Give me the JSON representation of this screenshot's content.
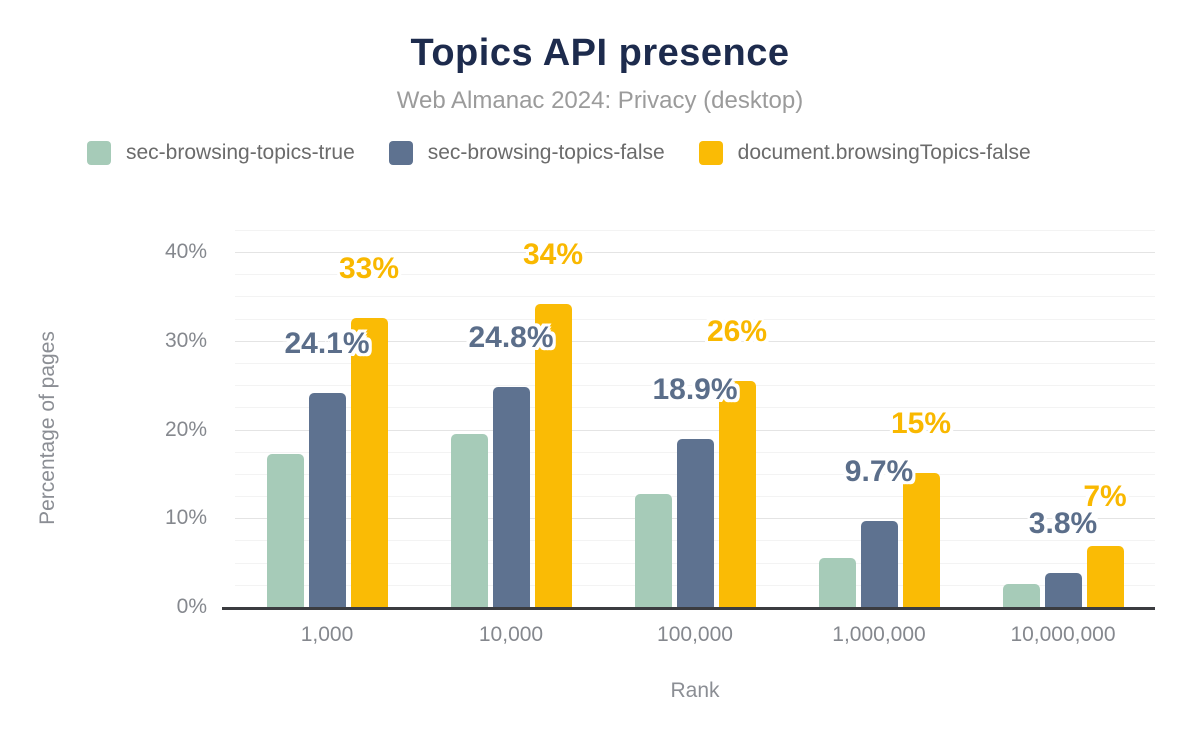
{
  "chart_data": {
    "type": "bar",
    "title": "Topics API presence",
    "subtitle": "Web Almanac 2024: Privacy (desktop)",
    "xlabel": "Rank",
    "ylabel": "Percentage of pages",
    "ylim": [
      0,
      40
    ],
    "grid": {
      "minor_step": 2.5,
      "major_step": 10,
      "top": 42.5,
      "on": true
    },
    "legend_position": "top-left",
    "y_tick_values": [
      0,
      10,
      20,
      30,
      40
    ],
    "y_tick_labels": [
      "0%",
      "10%",
      "20%",
      "30%",
      "40%"
    ],
    "categories": [
      "1,000",
      "10,000",
      "100,000",
      "1,000,000",
      "10,000,000"
    ],
    "series": [
      {
        "name": "sec-browsing-topics-true",
        "color": "#a6cbb8",
        "label_color": "#a6cbb8",
        "values": [
          17.2,
          19.5,
          12.7,
          5.5,
          2.6
        ],
        "labels": [
          "",
          "",
          "",
          "",
          ""
        ]
      },
      {
        "name": "sec-browsing-topics-false",
        "color": "#5e7290",
        "label_color": "#5b6e8a",
        "values": [
          24.1,
          24.8,
          18.9,
          9.7,
          3.8
        ],
        "labels": [
          "24.1%",
          "24.8%",
          "18.9%",
          "9.7%",
          "3.8%"
        ]
      },
      {
        "name": "document.browsingTopics-false",
        "color": "#fabb05",
        "label_color": "#f9b800",
        "values": [
          32.6,
          34.1,
          25.5,
          15.1,
          6.9
        ],
        "labels": [
          "33%",
          "34%",
          "26%",
          "15%",
          "7%"
        ]
      }
    ]
  }
}
